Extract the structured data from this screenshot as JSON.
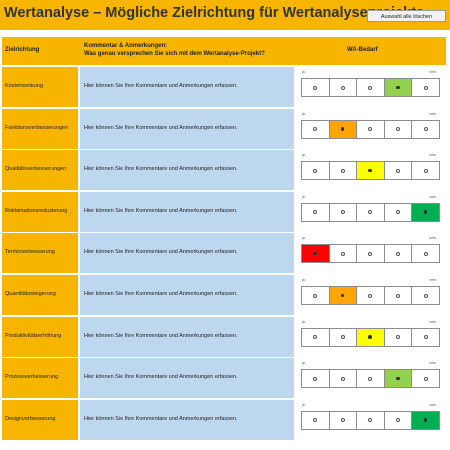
{
  "title": "Wertanalyse – Mögliche Zielrichtung für Wertanalyseprojekte",
  "clear_button": "Auswahl alle löschen",
  "header": {
    "col1": "Zielrichtung",
    "col2_line1": "Kommentar & Anmerkungen:",
    "col2_line2": "Was genau versprechen Sie sich mit dem Wertanalyse-Projekt?",
    "col3": "WA-Bedarf"
  },
  "scale": {
    "ja": "ja",
    "nein": "nein"
  },
  "colors": [
    "#ff0000",
    "#ffa500",
    "#ffff00",
    "#92d050",
    "#00b050"
  ],
  "rows": [
    {
      "label": "Kostensenkung",
      "comment": "Hier können Sie Ihre Kommentare und Anmerkungen erfassen.",
      "selected": 3
    },
    {
      "label": "Funktionsverbesserungen",
      "comment": "Hier können Sie Ihre Kommentare und Anmerkungen erfassen.",
      "selected": 1
    },
    {
      "label": "Qualitätsverbesserungen",
      "comment": "Hier können Sie Ihre Kommentare und Anmerkungen erfassen.",
      "selected": 2
    },
    {
      "label": "Reklamationsreduzierung",
      "comment": "Hier können Sie Ihre Kommentare und Anmerkungen erfassen.",
      "selected": 4
    },
    {
      "label": "Terminverbesserung",
      "comment": "Hier können Sie Ihre Kommentare und Anmerkungen erfassen.",
      "selected": 0
    },
    {
      "label": "Quantitätssteigerung",
      "comment": "Hier können Sie Ihre Kommentare und Anmerkungen erfassen.",
      "selected": 1
    },
    {
      "label": "Produktivitätserhöhung",
      "comment": "Hier können Sie Ihre Kommentare und Anmerkungen erfassen.",
      "selected": 2
    },
    {
      "label": "Prozessverbesserung",
      "comment": "Hier können Sie Ihre Kommentare und Anmerkungen erfassen.",
      "selected": 3
    },
    {
      "label": "Designverbesserung",
      "comment": "Hier können Sie Ihre Kommentare und Anmerkungen erfassen.",
      "selected": 4
    }
  ]
}
